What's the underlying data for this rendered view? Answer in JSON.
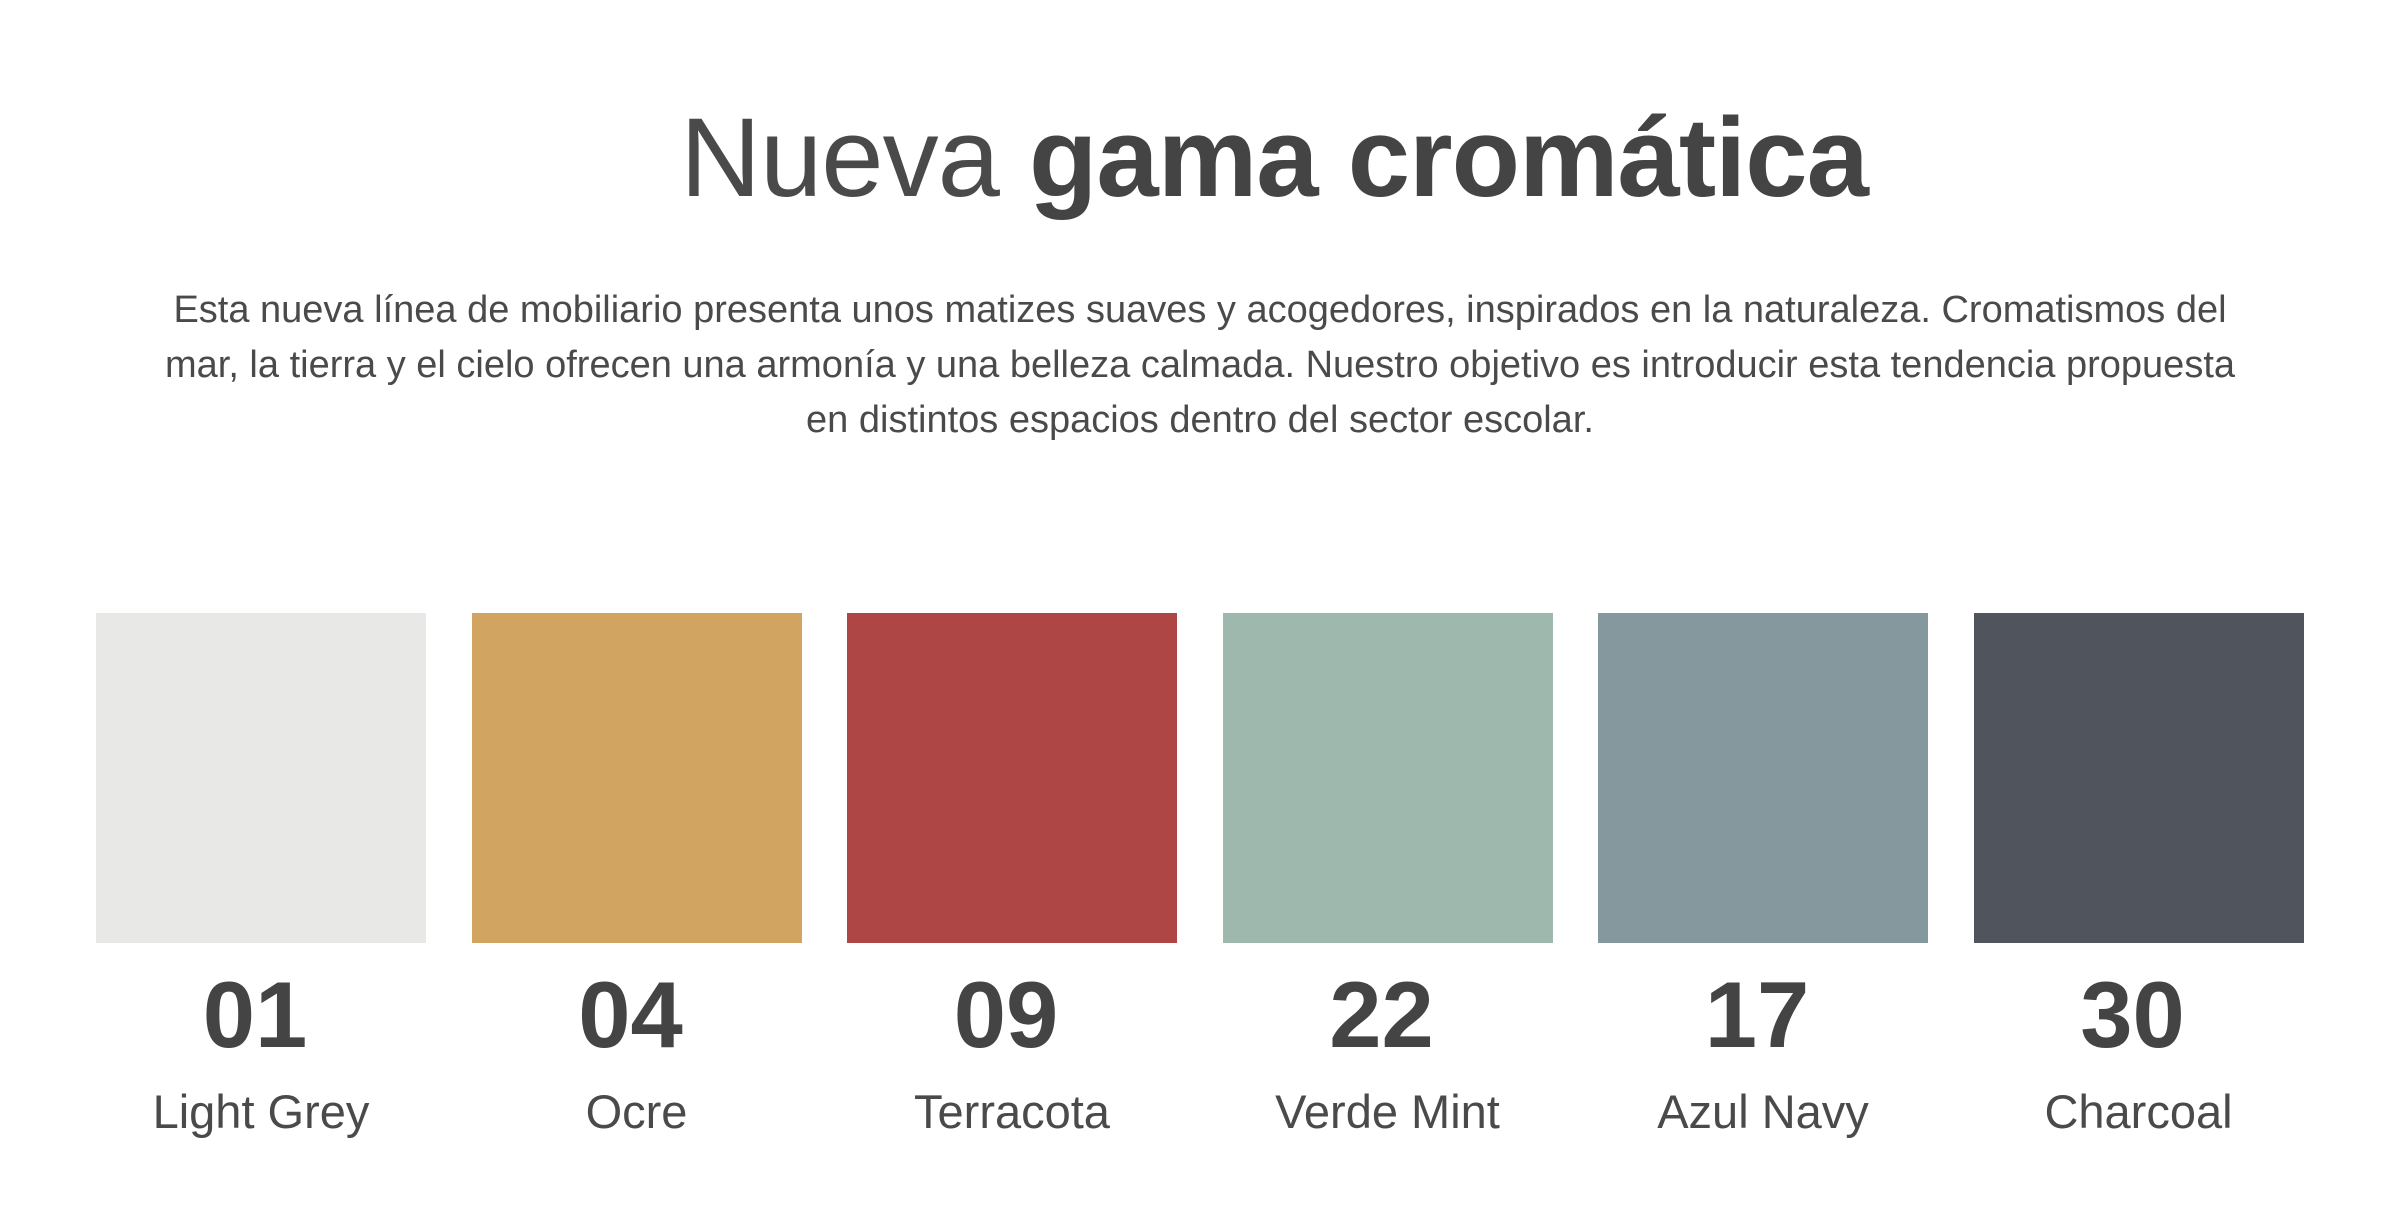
{
  "header": {
    "title_light": "Nueva",
    "title_bold": "gama cromática"
  },
  "description": {
    "lines": [
      "Esta nueva línea de mobiliario presenta unos matizes suaves y acogedores, inspirados en la naturaleza. Cromatismos del",
      "mar, la tierra y el cielo ofrecen una armonía y una belleza calmada. Nuestro objetivo es introducir esta tendencia propuesta",
      "en distintos espacios dentro del sector escolar."
    ]
  },
  "swatches": [
    {
      "code": "01",
      "name": "Light Grey",
      "color": "#e8e8e7"
    },
    {
      "code": "04",
      "name": "Ocre",
      "color": "#d1a461"
    },
    {
      "code": "09",
      "name": "Terracota",
      "color": "#ad4644"
    },
    {
      "code": "22",
      "name": "Verde Mint",
      "color": "#9fb8ad"
    },
    {
      "code": "17",
      "name": "Azul Navy",
      "color": "#85989d"
    },
    {
      "code": "30",
      "name": "Charcoal",
      "color": "#50545c"
    }
  ]
}
